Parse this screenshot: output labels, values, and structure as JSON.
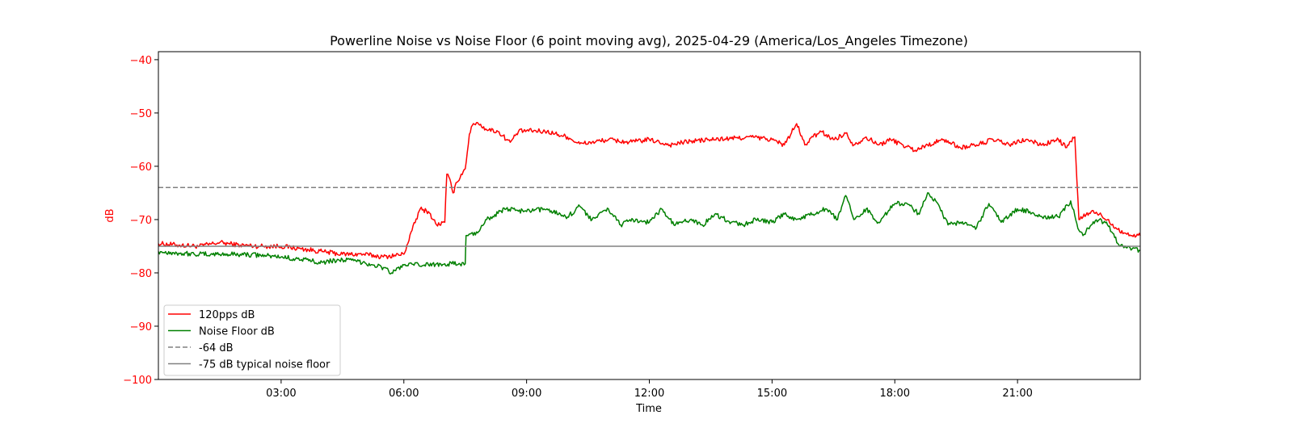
{
  "chart_data": {
    "type": "line",
    "title": "Powerline Noise vs Noise Floor (6 point moving avg), 2025-04-29 (America/Los_Angeles Timezone)",
    "xlabel": "Time",
    "ylabel": "dB",
    "x_unit": "hours",
    "xlim": [
      0,
      24
    ],
    "ylim": [
      -100,
      -38.5
    ],
    "x_ticks": [
      {
        "value": 3,
        "label": "03:00"
      },
      {
        "value": 6,
        "label": "06:00"
      },
      {
        "value": 9,
        "label": "09:00"
      },
      {
        "value": 12,
        "label": "12:00"
      },
      {
        "value": 15,
        "label": "15:00"
      },
      {
        "value": 18,
        "label": "18:00"
      },
      {
        "value": 21,
        "label": "21:00"
      }
    ],
    "y_ticks": [
      {
        "value": -40,
        "label": "−40"
      },
      {
        "value": -50,
        "label": "−50"
      },
      {
        "value": -60,
        "label": "−60"
      },
      {
        "value": -70,
        "label": "−70"
      },
      {
        "value": -80,
        "label": "−80"
      },
      {
        "value": -90,
        "label": "−90"
      },
      {
        "value": -100,
        "label": "−100"
      }
    ],
    "grid": false,
    "legend_position": "lower-left",
    "ylabel_color": "#ff0000",
    "series": [
      {
        "name": "120pps dB",
        "color": "#ff0000",
        "style": "solid",
        "x": [
          0,
          0.5,
          1,
          1.5,
          2,
          2.5,
          3,
          3.5,
          4,
          4.5,
          5,
          5.5,
          6,
          6.2,
          6.4,
          6.6,
          6.8,
          7,
          7.05,
          7.1,
          7.2,
          7.3,
          7.4,
          7.5,
          7.6,
          7.7,
          7.8,
          8,
          8.3,
          8.6,
          8.8,
          9,
          9.5,
          10,
          10.3,
          10.6,
          11,
          11.5,
          12,
          12.5,
          13,
          13.5,
          14,
          14.5,
          15,
          15.3,
          15.6,
          15.8,
          16,
          16.2,
          16.5,
          16.8,
          17,
          17.3,
          17.6,
          17.9,
          18.2,
          18.5,
          18.8,
          19.2,
          19.6,
          20,
          20.4,
          20.8,
          21.2,
          21.6,
          22,
          22.2,
          22.4,
          22.5,
          22.6,
          22.8,
          23,
          23.2,
          23.4,
          23.6,
          23.8,
          24
        ],
        "y": [
          -74.5,
          -74.8,
          -75,
          -74.3,
          -74.8,
          -75,
          -75,
          -75.5,
          -76,
          -76.5,
          -76.5,
          -77,
          -76.5,
          -72,
          -68,
          -68.5,
          -71,
          -70.5,
          -61.5,
          -62,
          -65,
          -63,
          -61.5,
          -60.5,
          -54,
          -52,
          -51.8,
          -53,
          -53.5,
          -55.5,
          -53.5,
          -53.3,
          -53.5,
          -54.5,
          -55.8,
          -55.5,
          -55,
          -55.5,
          -55,
          -56,
          -55.3,
          -55,
          -54.8,
          -54.5,
          -55,
          -56,
          -52,
          -56,
          -54.5,
          -53.5,
          -55,
          -53.8,
          -56,
          -54.5,
          -56,
          -55,
          -56,
          -57,
          -56,
          -55,
          -56.5,
          -56,
          -55,
          -56,
          -55,
          -56,
          -55,
          -56.5,
          -54.5,
          -70,
          -69.5,
          -68.5,
          -69,
          -70,
          -71.5,
          -72.5,
          -73,
          -73
        ]
      },
      {
        "name": "Noise Floor dB",
        "color": "#008000",
        "style": "solid",
        "x": [
          0,
          0.5,
          1,
          1.5,
          2,
          2.5,
          3,
          3.5,
          4,
          4.5,
          5,
          5.5,
          5.7,
          6,
          6.5,
          7,
          7.5,
          7.52,
          7.8,
          8,
          8.5,
          9,
          9.5,
          10,
          10.3,
          10.6,
          11,
          11.3,
          11.6,
          12,
          12.3,
          12.6,
          13,
          13.3,
          13.6,
          14,
          14.3,
          14.6,
          15,
          15.3,
          15.6,
          16,
          16.3,
          16.6,
          16.8,
          17,
          17.3,
          17.6,
          18,
          18.3,
          18.6,
          18.8,
          19,
          19.3,
          19.6,
          20,
          20.3,
          20.6,
          21,
          21.3,
          21.6,
          22,
          22.3,
          22.5,
          22.6,
          22.8,
          23,
          23.2,
          23.5,
          23.8,
          24
        ],
        "y": [
          -76,
          -76.3,
          -76.5,
          -76.5,
          -76.5,
          -76.7,
          -77,
          -77.5,
          -78,
          -77.5,
          -78,
          -79,
          -80,
          -78.5,
          -78.5,
          -78.3,
          -78.3,
          -73,
          -72.5,
          -70,
          -68,
          -68.5,
          -68,
          -69.5,
          -67.5,
          -70,
          -68,
          -71,
          -70,
          -70.5,
          -68,
          -71,
          -70,
          -71,
          -69,
          -70.5,
          -71,
          -70,
          -70.5,
          -69,
          -70,
          -69,
          -68,
          -70,
          -65.5,
          -70,
          -68,
          -70.5,
          -67,
          -67,
          -69,
          -65,
          -66.5,
          -71,
          -70.5,
          -71.5,
          -67,
          -70.5,
          -68,
          -68.5,
          -69.5,
          -69.5,
          -66.5,
          -72,
          -73,
          -71,
          -70,
          -71,
          -75,
          -75.5,
          -75.8
        ]
      },
      {
        "name": "-64 dB",
        "color": "#808080",
        "style": "dashed",
        "x": [
          0,
          24
        ],
        "y": [
          -64,
          -64
        ]
      },
      {
        "name": "-75 dB typical noise floor",
        "color": "#808080",
        "style": "solid",
        "x": [
          0,
          24
        ],
        "y": [
          -75,
          -75
        ]
      }
    ]
  }
}
